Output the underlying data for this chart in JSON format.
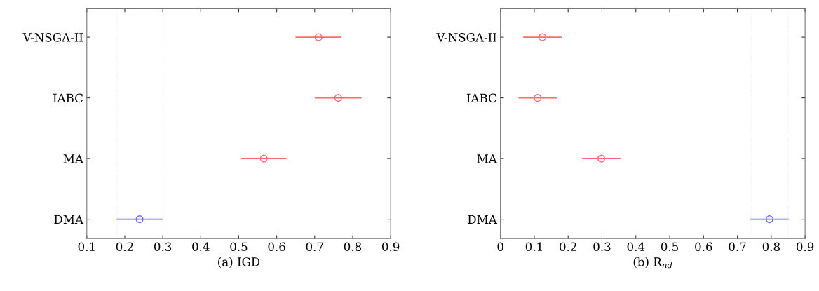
{
  "chart_data": [
    {
      "type": "scatter",
      "orientation": "horizontal",
      "xlabel": "(a) IGD",
      "categories": [
        "V-NSGA-II",
        "IABC",
        "MA",
        "DMA"
      ],
      "values": [
        0.71,
        0.762,
        0.566,
        0.239
      ],
      "errors": [
        0.059,
        0.06,
        0.058,
        0.059
      ],
      "colors": [
        "#ff6b6b",
        "#ff6b6b",
        "#ff6b6b",
        "#6b6bff"
      ],
      "marker": "circle",
      "xlim": [
        0.1,
        0.9
      ],
      "xticks": [
        0.1,
        0.2,
        0.3,
        0.4,
        0.5,
        0.6,
        0.7,
        0.8,
        0.9
      ],
      "ref_lines": [
        {
          "axis": "x",
          "value": 0.18,
          "color": "#e8e8e8",
          "line_style": "dotted"
        },
        {
          "axis": "x",
          "value": 0.3,
          "color": "#e8e8e8",
          "line_style": "dotted"
        }
      ]
    },
    {
      "type": "scatter",
      "orientation": "horizontal",
      "xlabel": "(b) R$_{nd}$",
      "categories": [
        "V-NSGA-II",
        "IABC",
        "MA",
        "DMA"
      ],
      "values": [
        0.124,
        0.11,
        0.298,
        0.795
      ],
      "errors": [
        0.055,
        0.055,
        0.055,
        0.055
      ],
      "colors": [
        "#ff6b6b",
        "#ff6b6b",
        "#ff6b6b",
        "#6b6bff"
      ],
      "marker": "circle",
      "xlim": [
        0,
        0.9
      ],
      "xticks": [
        0,
        0.1,
        0.2,
        0.3,
        0.4,
        0.5,
        0.6,
        0.7,
        0.8,
        0.9
      ],
      "ref_lines": [
        {
          "axis": "x",
          "value": 0.74,
          "color": "#e8e8e8",
          "line_style": "dotted"
        },
        {
          "axis": "x",
          "value": 0.85,
          "color": "#e8e8e8",
          "line_style": "dotted"
        }
      ]
    }
  ]
}
